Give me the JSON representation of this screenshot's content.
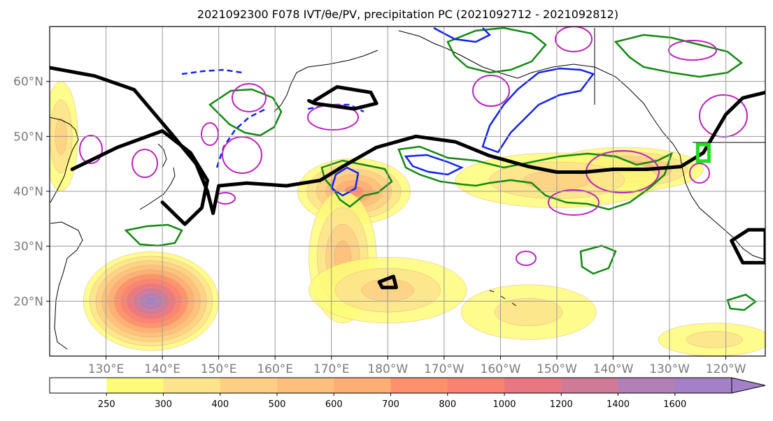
{
  "chart_data": {
    "type": "heatmap",
    "title": "2021092300 F078 IVT/θe/PV, precipitation PC (2021092712 - 2021092812)",
    "xlabel": "",
    "ylabel": "",
    "xlim": [
      120,
      247
    ],
    "ylim": [
      10,
      70
    ],
    "x_ticks": [
      {
        "lon": 130,
        "label": "130°E"
      },
      {
        "lon": 140,
        "label": "140°E"
      },
      {
        "lon": 150,
        "label": "150°E"
      },
      {
        "lon": 160,
        "label": "160°E"
      },
      {
        "lon": 170,
        "label": "170°E"
      },
      {
        "lon": 180,
        "label": "180°W"
      },
      {
        "lon": 190,
        "label": "170°W"
      },
      {
        "lon": 200,
        "label": "160°W"
      },
      {
        "lon": 210,
        "label": "150°W"
      },
      {
        "lon": 220,
        "label": "140°W"
      },
      {
        "lon": 230,
        "label": "130°W"
      },
      {
        "lon": 240,
        "label": "120°W"
      }
    ],
    "y_ticks": [
      {
        "lat": 20,
        "label": "20°N"
      },
      {
        "lat": 30,
        "label": "30°N"
      },
      {
        "lat": 40,
        "label": "40°N"
      },
      {
        "lat": 50,
        "label": "50°N"
      },
      {
        "lat": 60,
        "label": "60°N"
      }
    ],
    "grid": true,
    "colorbar": {
      "levels": [
        250,
        300,
        400,
        500,
        600,
        700,
        800,
        1000,
        1200,
        1400,
        1600
      ],
      "labels": [
        "250",
        "300",
        "400",
        "500",
        "600",
        "700",
        "800",
        "1000",
        "1200",
        "1400",
        "1600"
      ],
      "colors": [
        "#ffffff",
        "#fdfb78",
        "#fde38c",
        "#fdcf84",
        "#fdbf7b",
        "#fdae73",
        "#fd916b",
        "#f98271",
        "#e97781",
        "#d07a98",
        "#b27fb7",
        "#a380c8"
      ],
      "extend": "max"
    },
    "ivt_blobs": [
      {
        "lon": 138,
        "lat": 20,
        "rx": 12,
        "ry": 9,
        "peak": 1600
      },
      {
        "lon": 122,
        "lat": 50,
        "rx": 3,
        "ry": 10,
        "peak": 400
      },
      {
        "lon": 174,
        "lat": 40,
        "rx": 10,
        "ry": 6,
        "peak": 700
      },
      {
        "lon": 172,
        "lat": 28,
        "rx": 6,
        "ry": 12,
        "peak": 500
      },
      {
        "lon": 180,
        "lat": 22,
        "rx": 14,
        "ry": 6,
        "peak": 400
      },
      {
        "lon": 205,
        "lat": 18,
        "rx": 12,
        "ry": 5,
        "peak": 350
      },
      {
        "lon": 222,
        "lat": 44,
        "rx": 14,
        "ry": 4,
        "peak": 600
      },
      {
        "lon": 210,
        "lat": 42,
        "rx": 18,
        "ry": 5,
        "peak": 400
      },
      {
        "lon": 238,
        "lat": 13,
        "rx": 10,
        "ry": 3,
        "peak": 350
      }
    ],
    "theta_e_contours": [
      {
        "lon": [
          120,
          128,
          135,
          142,
          146,
          148,
          149,
          150,
          155,
          162,
          168,
          172,
          178,
          185,
          192,
          198,
          205,
          210,
          215,
          220,
          226,
          232,
          236,
          240,
          243,
          247
        ],
        "lat": [
          62.5,
          61,
          58.5,
          50,
          45,
          40,
          36,
          41,
          41.5,
          41,
          42,
          44.5,
          48,
          50,
          49,
          46.5,
          44.5,
          43.5,
          43.5,
          44,
          44,
          44.5,
          47,
          54,
          57,
          58
        ]
      },
      {
        "lon": [
          124,
          132,
          140,
          145,
          148,
          147,
          144,
          140
        ],
        "lat": [
          44,
          48,
          51,
          47,
          42,
          37,
          34,
          38
        ]
      },
      {
        "lon": [
          167,
          171,
          177,
          178,
          174,
          167,
          166
        ],
        "lat": [
          56.5,
          59,
          58,
          56,
          55,
          56,
          56.5
        ]
      },
      {
        "lon": [
          178.5,
          181,
          181.5,
          179,
          178.5
        ],
        "lat": [
          23.5,
          24.5,
          22.5,
          22.5,
          23.5
        ]
      },
      {
        "lon": [
          241,
          244,
          247,
          247,
          243,
          241
        ],
        "lat": [
          31,
          33,
          33,
          27,
          27,
          31
        ]
      }
    ],
    "highlight_box": {
      "lon": [
        235,
        237
      ],
      "lat": [
        45.5,
        48.5
      ],
      "color": "#22dd22"
    }
  }
}
